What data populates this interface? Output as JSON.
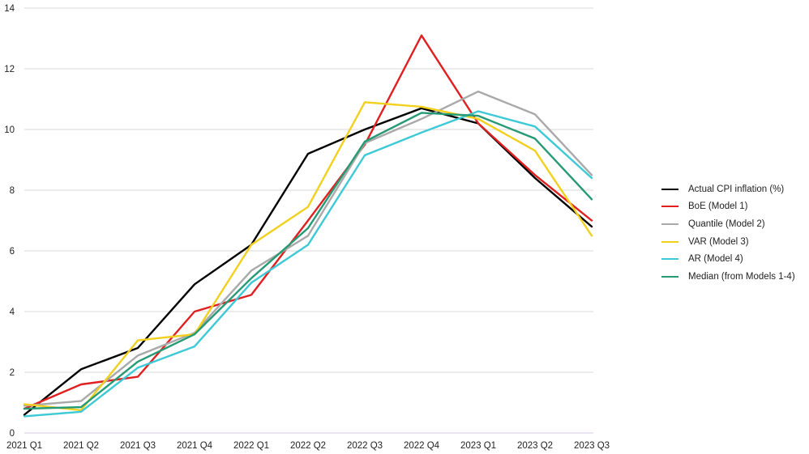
{
  "chart_data": {
    "type": "line",
    "title": "",
    "xlabel": "",
    "ylabel": "",
    "categories": [
      "2021 Q1",
      "2021 Q2",
      "2021 Q3",
      "2021 Q4",
      "2022 Q1",
      "2022 Q2",
      "2022 Q3",
      "2022 Q4",
      "2023 Q1",
      "2023 Q2",
      "2023 Q3"
    ],
    "ylim": [
      0,
      14
    ],
    "yticks": [
      0,
      2,
      4,
      6,
      8,
      10,
      12,
      14
    ],
    "grid": true,
    "legend_position": "right",
    "series": [
      {
        "name": "Actual CPI inflation (%)",
        "color": "#000000",
        "values": [
          0.6,
          2.1,
          2.8,
          4.9,
          6.2,
          9.2,
          10.0,
          10.7,
          10.2,
          8.4,
          6.8
        ]
      },
      {
        "name": "BoE (Model 1)",
        "color": "#e02020",
        "values": [
          0.8,
          1.6,
          1.85,
          4.0,
          4.55,
          7.0,
          9.5,
          13.1,
          10.2,
          8.5,
          7.0
        ]
      },
      {
        "name": "Quantile (Model 2)",
        "color": "#a9a9a9",
        "values": [
          0.9,
          1.05,
          2.55,
          3.3,
          5.35,
          6.5,
          9.55,
          10.35,
          11.25,
          10.5,
          8.5
        ]
      },
      {
        "name": "VAR (Model 3)",
        "color": "#f2d01e",
        "values": [
          0.95,
          0.75,
          3.05,
          3.25,
          6.2,
          7.45,
          10.9,
          10.75,
          10.35,
          9.3,
          6.5
        ]
      },
      {
        "name": "AR (Model 4)",
        "color": "#3ec9d6",
        "values": [
          0.55,
          0.7,
          2.15,
          2.85,
          4.95,
          6.2,
          9.15,
          9.9,
          10.6,
          10.1,
          8.4
        ]
      },
      {
        "name": "Median (from Models 1-4)",
        "color": "#259a74",
        "values": [
          0.8,
          0.85,
          2.35,
          3.25,
          5.1,
          6.75,
          9.6,
          10.55,
          10.45,
          9.7,
          7.7
        ]
      }
    ]
  }
}
